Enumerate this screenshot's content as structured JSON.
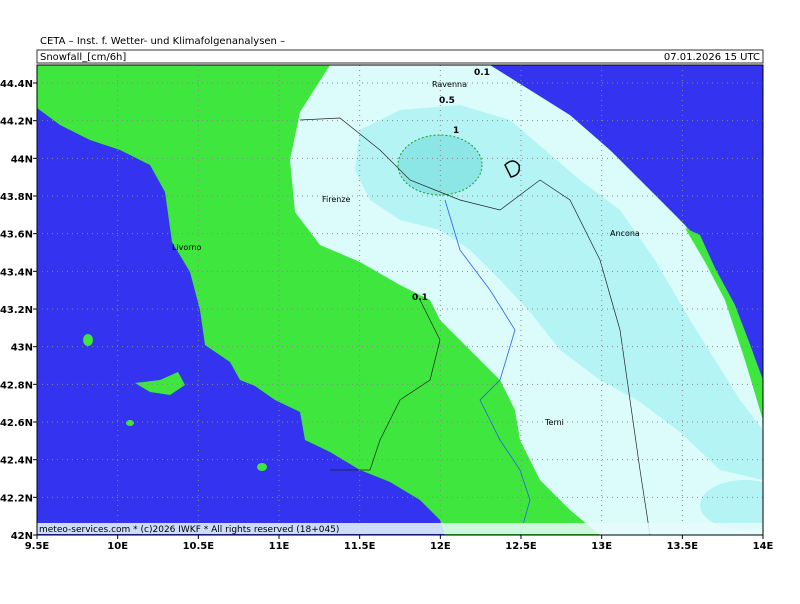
{
  "header": {
    "title": "CETA – Inst. f. Wetter- und Klimafolgenanalysen –",
    "parameter": "Snowfall_[cm/6h]",
    "valid_time": "07.01.2026 15 UTC"
  },
  "map": {
    "lon_ticks": [
      {
        "value": 9.5,
        "label": "9.5E"
      },
      {
        "value": 10,
        "label": "10E"
      },
      {
        "value": 10.5,
        "label": "10.5E"
      },
      {
        "value": 11,
        "label": "11E"
      },
      {
        "value": 11.5,
        "label": "11.5E"
      },
      {
        "value": 12,
        "label": "12E"
      },
      {
        "value": 12.5,
        "label": "12.5E"
      },
      {
        "value": 13,
        "label": "13E"
      },
      {
        "value": 13.5,
        "label": "13.5E"
      },
      {
        "value": 14,
        "label": "14E"
      }
    ],
    "lat_ticks": [
      {
        "value": 42,
        "label": "42N"
      },
      {
        "value": 42.2,
        "label": "42.2N"
      },
      {
        "value": 42.4,
        "label": "42.4N"
      },
      {
        "value": 42.6,
        "label": "42.6N"
      },
      {
        "value": 42.8,
        "label": "42.8N"
      },
      {
        "value": 43,
        "label": "43N"
      },
      {
        "value": 43.2,
        "label": "43.2N"
      },
      {
        "value": 43.4,
        "label": "43.4N"
      },
      {
        "value": 43.6,
        "label": "43.6N"
      },
      {
        "value": 43.8,
        "label": "43.8N"
      },
      {
        "value": 44,
        "label": "44N"
      },
      {
        "value": 44.2,
        "label": "44.2N"
      },
      {
        "value": 44.4,
        "label": "44.4N"
      }
    ],
    "cities": [
      "Ravenna",
      "Firenze",
      "Livorno",
      "Ancona",
      "Terni"
    ],
    "contour_labels": [
      "0.1",
      "0.5",
      "1",
      "0.1"
    ]
  },
  "footer": "meteo-services.com * (c)2026 IWKF * All rights reserved (18+045)"
}
